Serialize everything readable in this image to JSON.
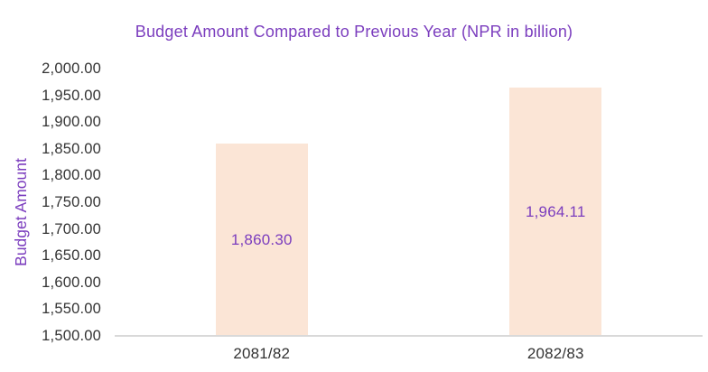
{
  "chart_data": {
    "type": "bar",
    "title": "Budget Amount Compared to Previous Year (NPR in billion)",
    "xlabel": "",
    "ylabel": "Budget Amount",
    "categories": [
      "2081/82",
      "2082/83"
    ],
    "values": [
      1860.3,
      1964.11
    ],
    "data_labels": [
      "1,860.30",
      "1,964.11"
    ],
    "data_label_position": "center-inside",
    "ylim": [
      1500,
      2000
    ],
    "ytick_step": 50,
    "ytick_labels": [
      "2,000.00",
      "1,950.00",
      "1,900.00",
      "1,850.00",
      "1,800.00",
      "1,750.00",
      "1,700.00",
      "1,650.00",
      "1,600.00",
      "1,550.00",
      "1,500.00"
    ],
    "grid": "off",
    "legend": "none",
    "colors": {
      "background": "#FFFFFF",
      "bar_fill": "#FBE5D6",
      "title_text": "#7B3DBE",
      "axis_title_text": "#7B3DBE",
      "data_label_text": "#7B3DBE",
      "tick_text": "#333333",
      "axis_line": "#D9D9D9"
    }
  }
}
